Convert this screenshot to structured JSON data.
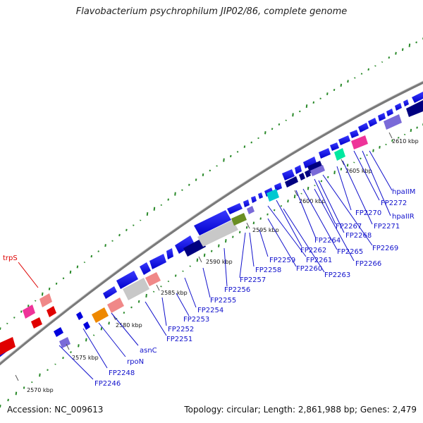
{
  "title": "Flavobacterium psychrophilum JIP02/86, complete genome",
  "footer": {
    "accession": "Accession: NC_009613",
    "topology": "Topology: circular; Length: 2,861,988 bp; Genes: 2,479"
  },
  "colors": {
    "backbone": "#888888",
    "label": "#1010cc",
    "label_red": "#dd0000",
    "gc_dot": "#2a8a2a"
  },
  "tick_labels": [
    "2570 kbp",
    "2575 kbp",
    "2580 kbp",
    "2585 kbp",
    "2590 kbp",
    "2595 kbp",
    "2600 kbp",
    "2605 kbp",
    "2610 kbp"
  ],
  "gene_labels": [
    "trpS",
    "FP2246",
    "FP2248",
    "rpoN",
    "asnC",
    "FP2251",
    "FP2252",
    "FP2253",
    "FP2254",
    "FP2255",
    "FP2256",
    "FP2257",
    "FP2258",
    "FP2259",
    "FP2260",
    "FP2261",
    "FP2262",
    "FP2263",
    "FP2264",
    "FP2265",
    "FP2266",
    "FP2267",
    "FP2268",
    "FP2269",
    "FP2270",
    "FP2271",
    "FP2272",
    "hpaIIR",
    "hpaIIM"
  ]
}
